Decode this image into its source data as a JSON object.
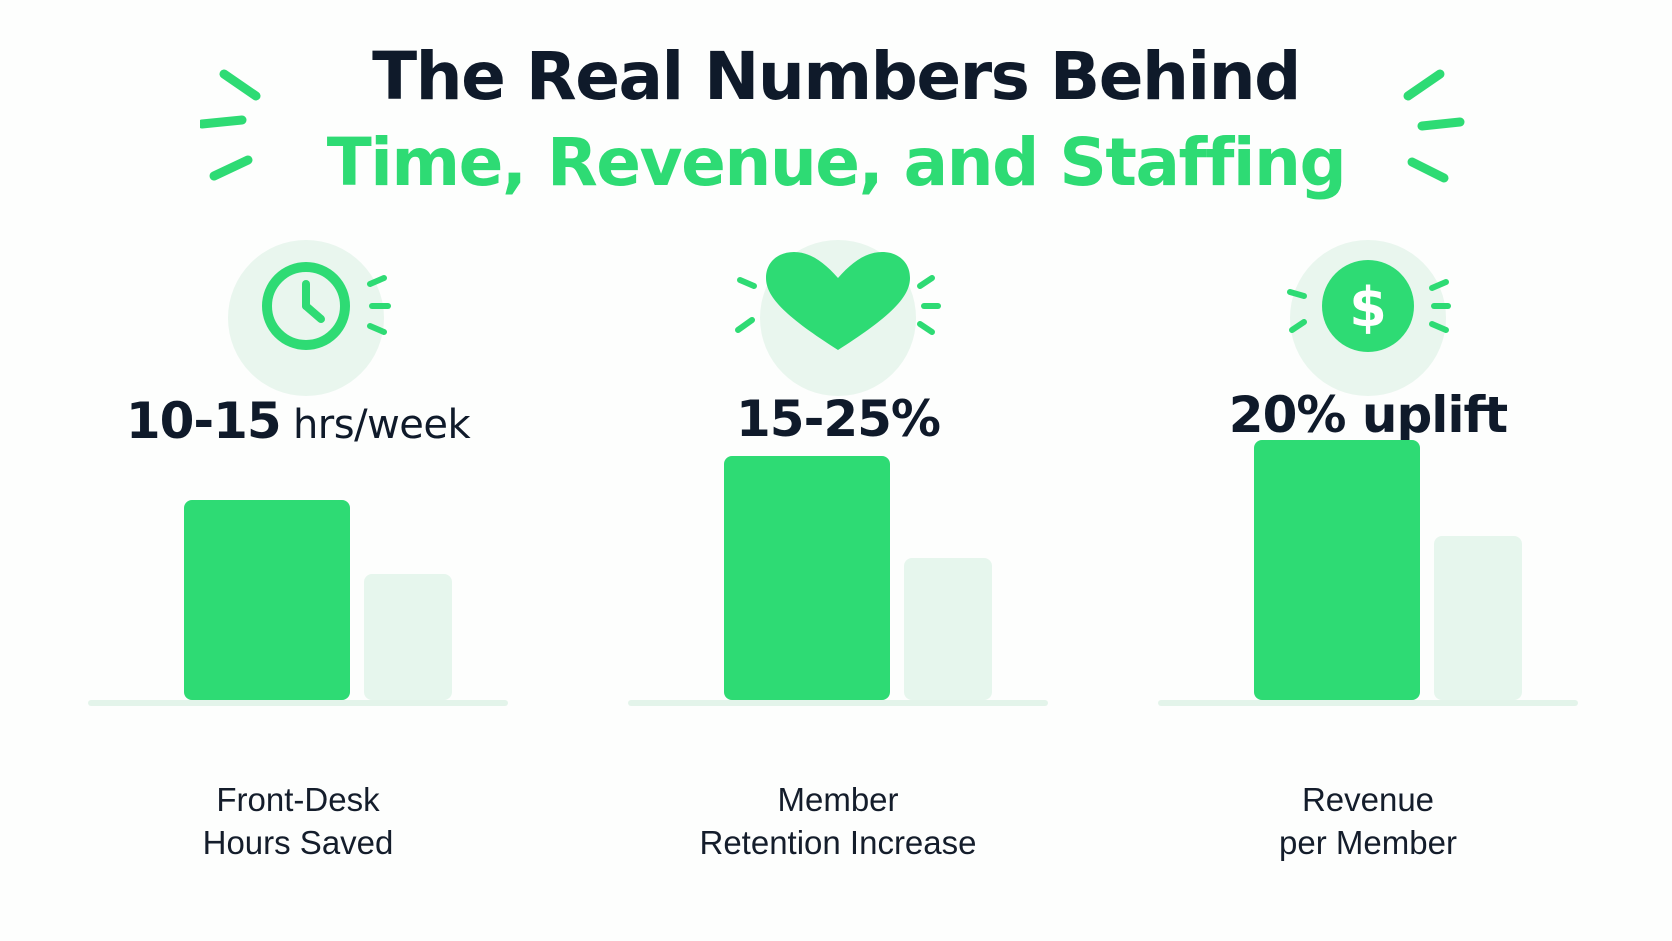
{
  "title": {
    "line1": "The Real Numbers Behind",
    "line2": "Time, Revenue, and Staffing"
  },
  "colors": {
    "accent": "#2edb74",
    "accent_light": "#e9f6ee",
    "secondary_bar": "#e6f6ed",
    "baseline": "#e3f4ea",
    "text_dark": "#0f1a2a"
  },
  "panels": [
    {
      "icon": "clock-icon",
      "value_main": "10-15",
      "value_suffix": " hrs/week",
      "caption_line1": "Front-Desk",
      "caption_line2": "Hours Saved"
    },
    {
      "icon": "heart-icon",
      "value_main": "15-25%",
      "value_suffix": "",
      "caption_line1": "Member",
      "caption_line2": "Retention Increase"
    },
    {
      "icon": "dollar-icon",
      "value_main": "20% uplift",
      "value_suffix": "",
      "caption_line1": "Revenue",
      "caption_line2": "per Member"
    }
  ],
  "chart_data": [
    {
      "type": "bar",
      "categories": [
        "",
        ""
      ],
      "values": [
        1.0,
        0.63
      ],
      "ylim": [
        0,
        1.25
      ]
    },
    {
      "type": "bar",
      "categories": [
        "",
        ""
      ],
      "values": [
        1.22,
        0.71
      ],
      "ylim": [
        0,
        1.25
      ]
    },
    {
      "type": "bar",
      "categories": [
        "",
        ""
      ],
      "values": [
        1.3,
        0.82
      ],
      "ylim": [
        0,
        1.25
      ]
    }
  ]
}
